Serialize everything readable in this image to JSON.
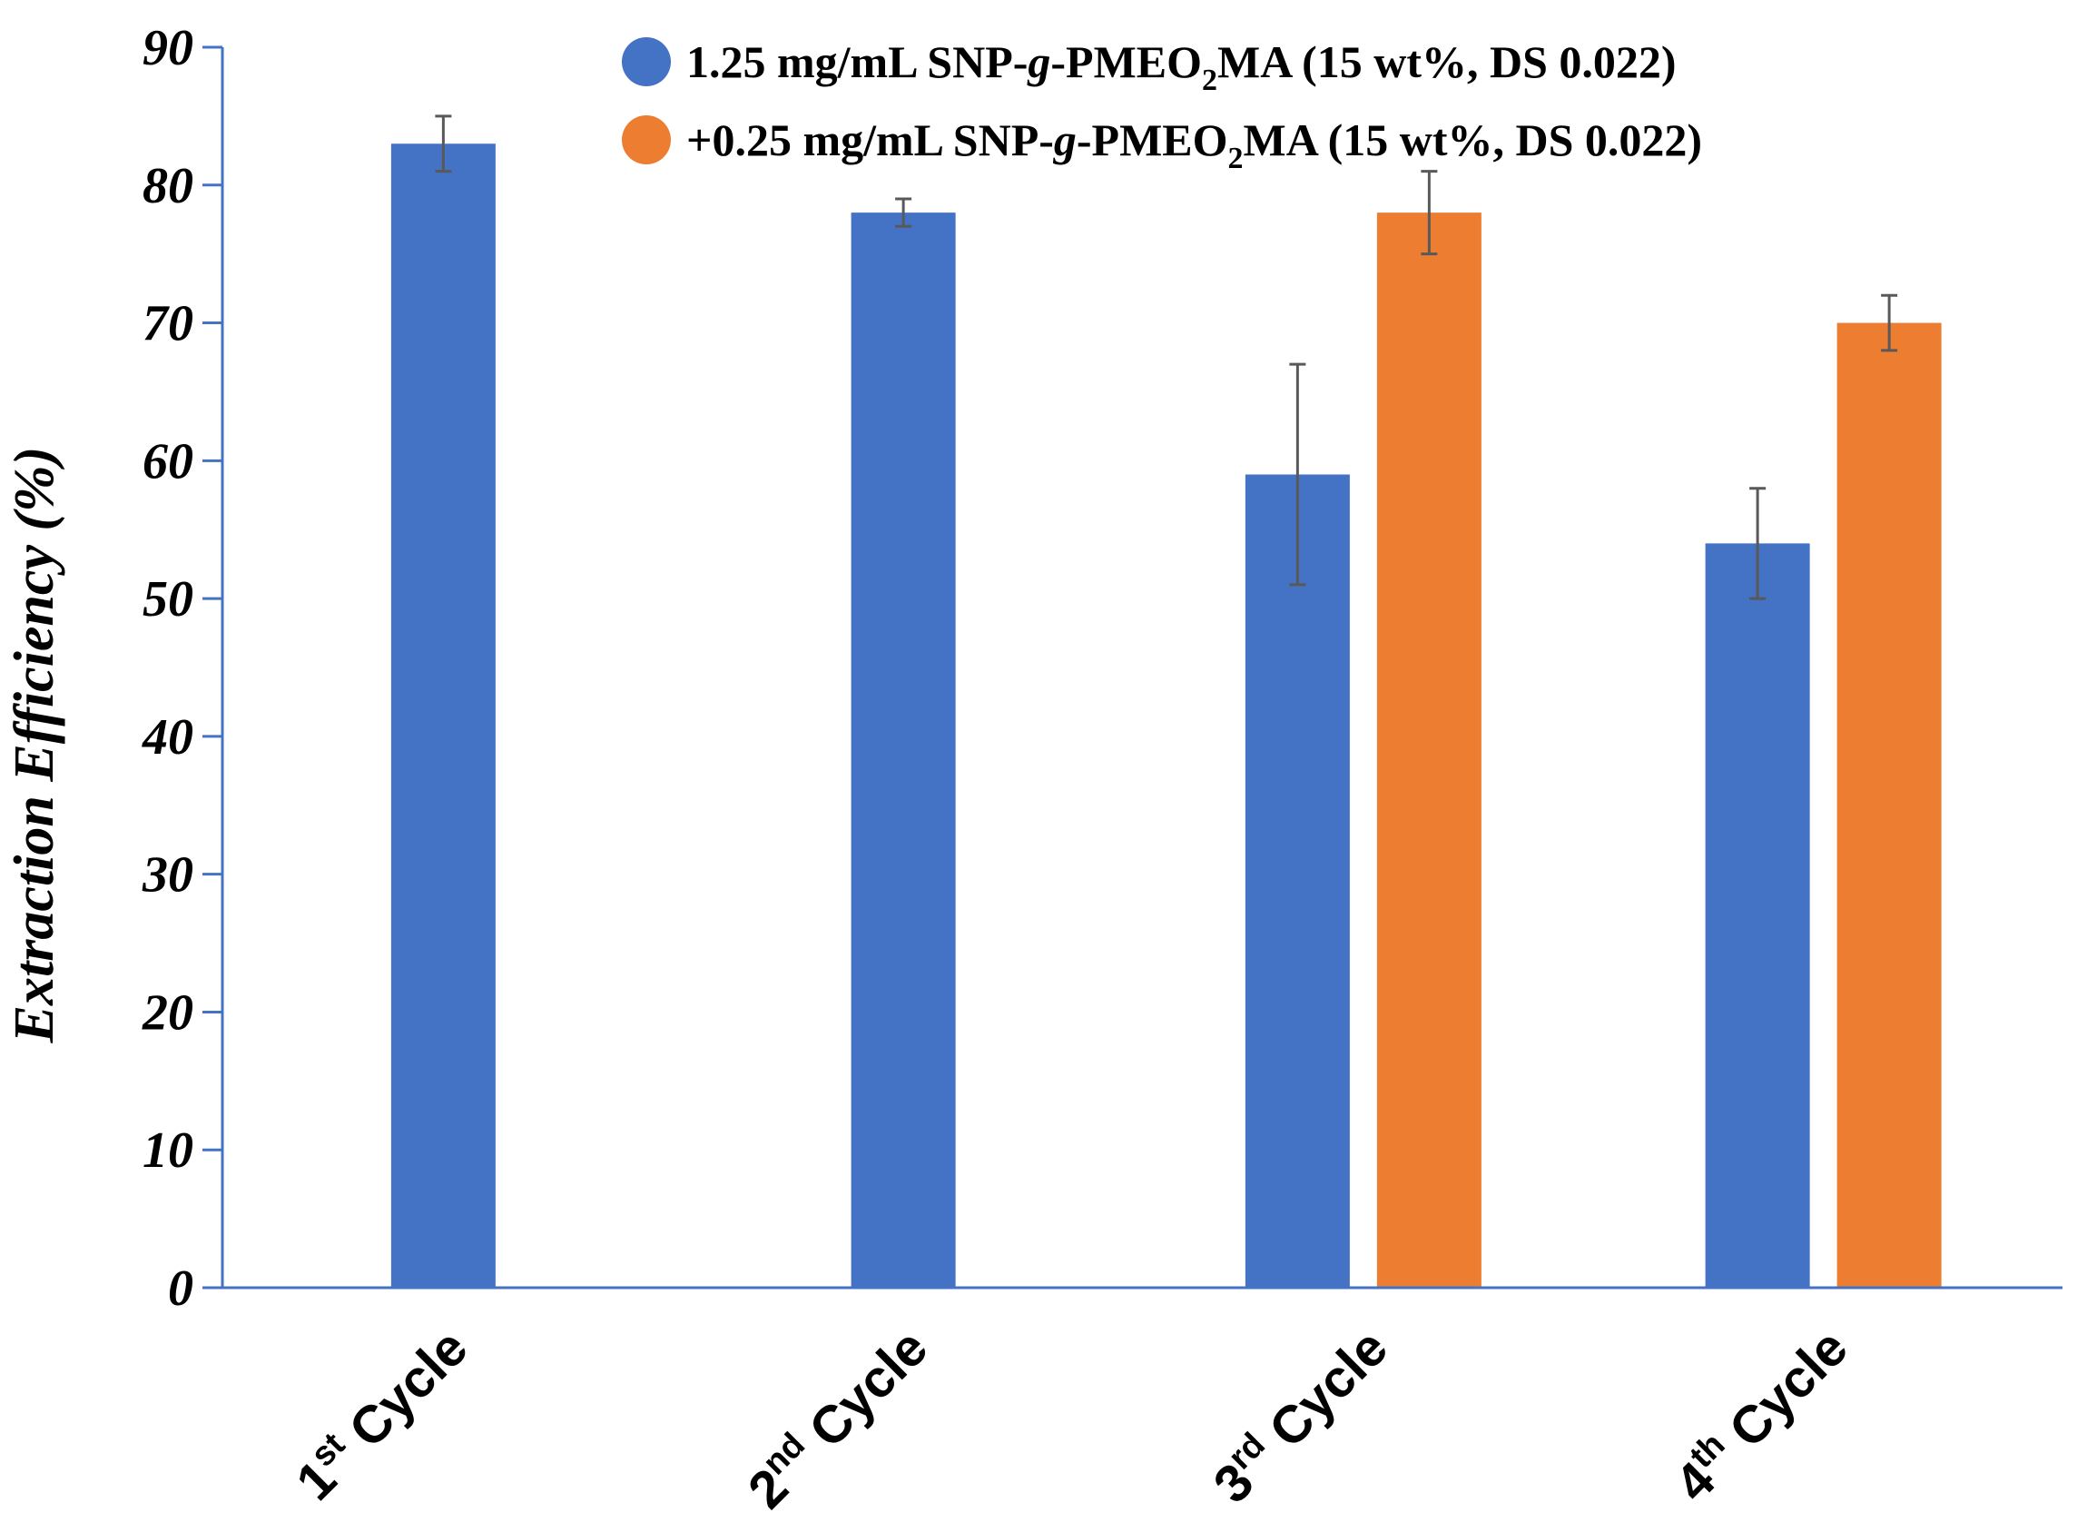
{
  "chart_data": {
    "type": "bar",
    "title": "",
    "xlabel": "",
    "ylabel": "Extraction Efficiency (%)",
    "ylim": [
      0,
      90
    ],
    "yticks": [
      0,
      10,
      20,
      30,
      40,
      50,
      60,
      70,
      80,
      90
    ],
    "grid": false,
    "legend_position": "top-right",
    "categories": [
      {
        "ordinal": "1",
        "suffix": "st",
        "word": " Cycle"
      },
      {
        "ordinal": "2",
        "suffix": "nd",
        "word": " Cycle"
      },
      {
        "ordinal": "3",
        "suffix": "rd",
        "word": " Cycle"
      },
      {
        "ordinal": "4",
        "suffix": "th",
        "word": " Cycle"
      }
    ],
    "series": [
      {
        "name": "1.25 mg/mL SNP-g-PMEO2MA (15 wt%, DS 0.022)",
        "legend_parts": [
          "1.25 mg/mL SNP-",
          "g",
          "-PMEO",
          "2",
          "MA (15 wt%, DS 0.022)"
        ],
        "color": "#4472C4",
        "values": [
          83,
          78,
          59,
          54
        ],
        "errors": [
          2,
          1,
          8,
          4
        ]
      },
      {
        "name": "+0.25 mg/mL SNP-g-PMEO2MA (15 wt%, DS 0.022)",
        "legend_parts": [
          "+0.25 mg/mL SNP-",
          "g",
          "-PMEO",
          "2",
          "MA (15 wt%, DS 0.022)"
        ],
        "color": "#ED7D31",
        "values": [
          null,
          null,
          78,
          70
        ],
        "errors": [
          null,
          null,
          3,
          2
        ]
      }
    ],
    "axis_color": "#4472C4",
    "error_bar_color": "#595959"
  }
}
